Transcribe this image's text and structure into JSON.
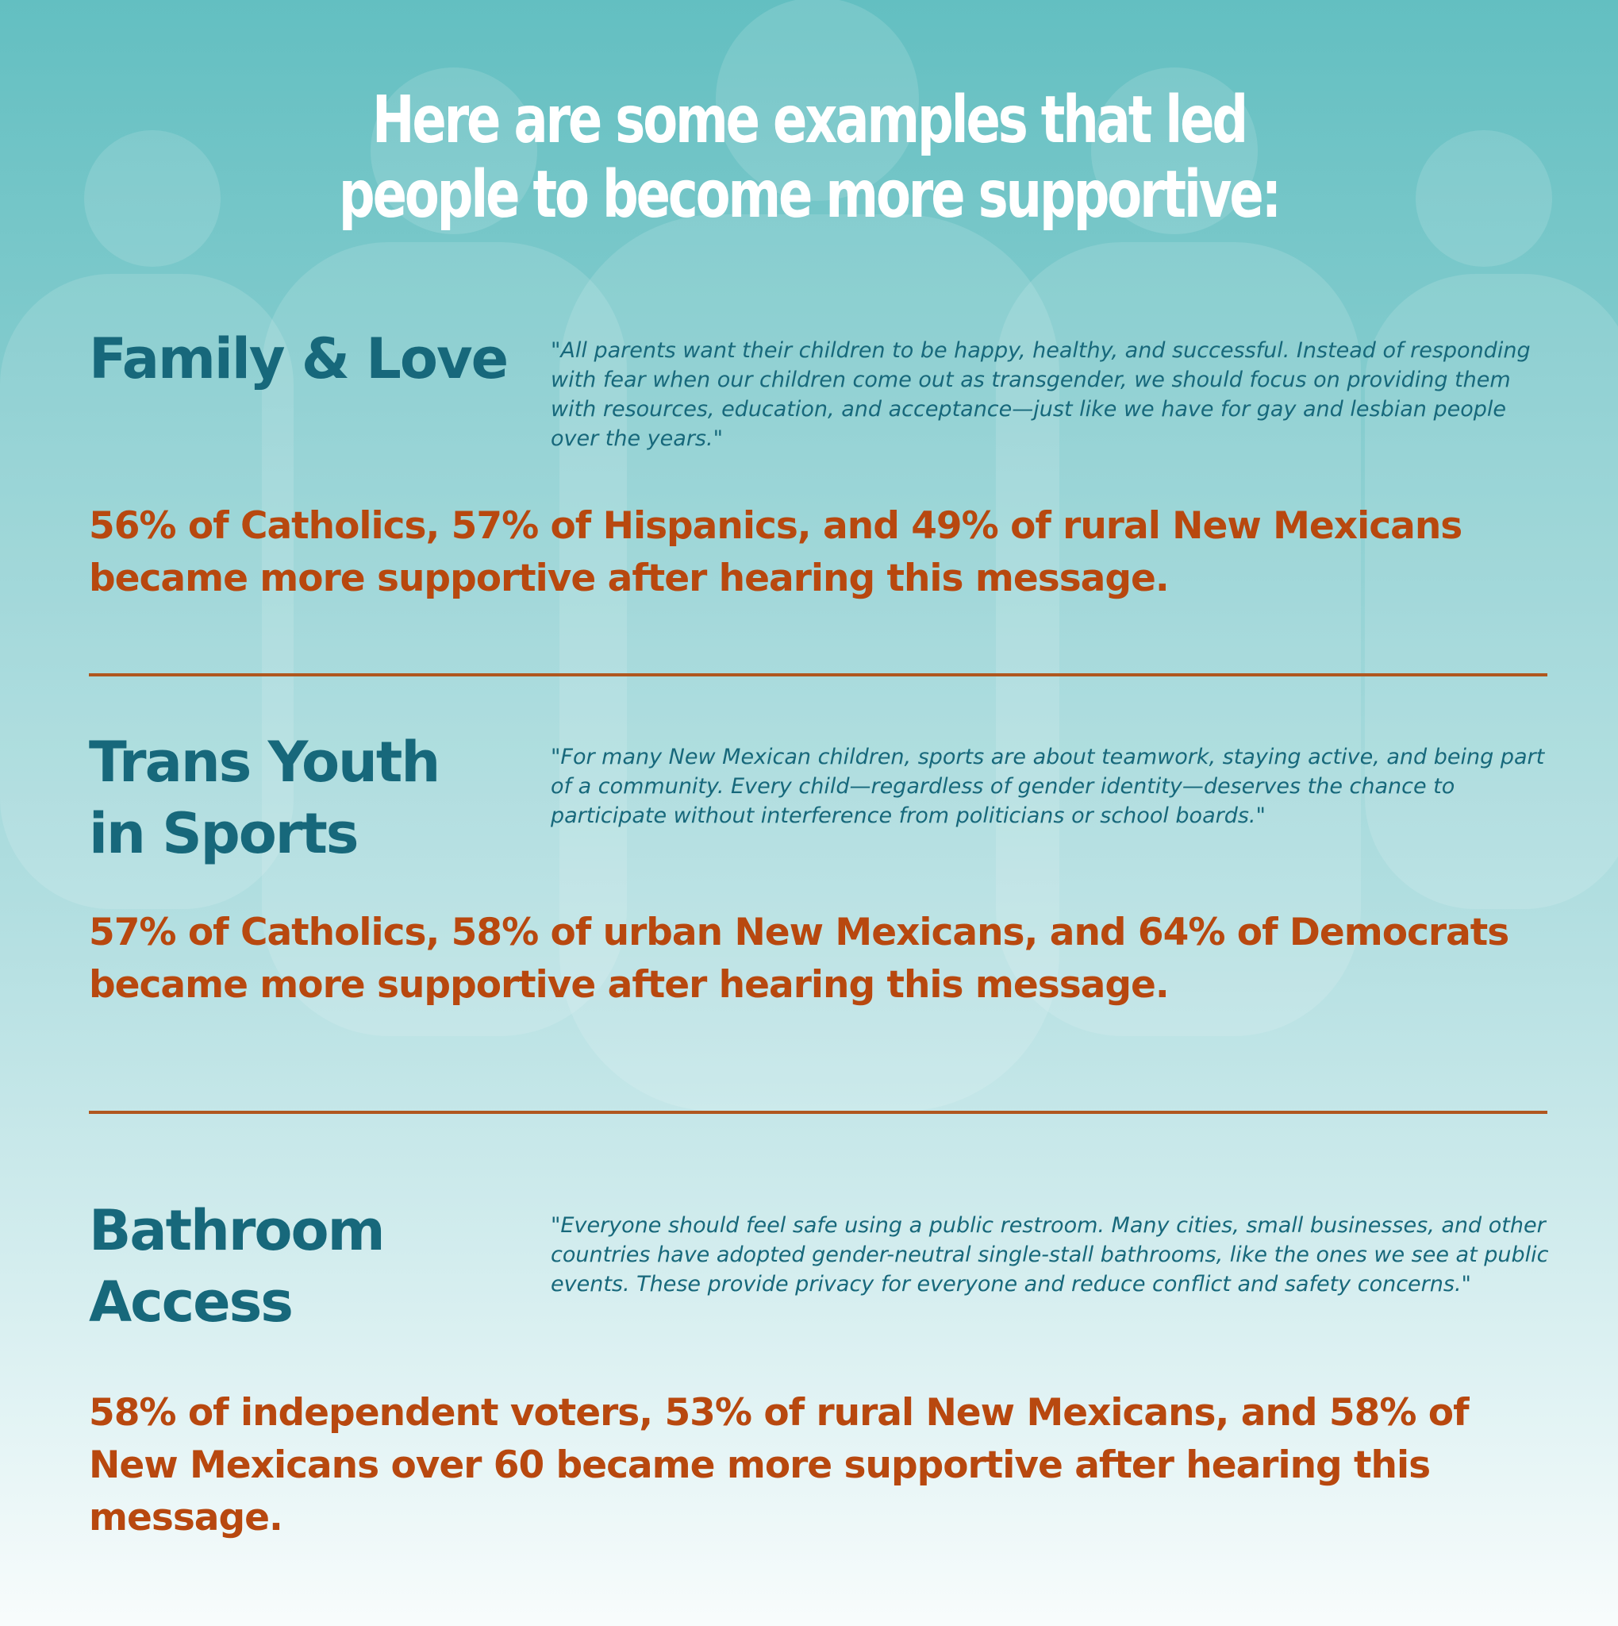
{
  "headline": {
    "line1": "Here are some examples that led",
    "line2": "people to become more supportive:"
  },
  "colors": {
    "background_top": "#63bfc1",
    "background_bottom": "#f8fcfc",
    "figure_silhouette": "#ffffff",
    "topic_heading": "#17687b",
    "quote_text": "#17687b",
    "stat_text": "#b8480f",
    "divider": "#b0571f"
  },
  "background": {
    "figure_icon": "person-silhouette-icon",
    "figure_count": 5
  },
  "sections": [
    {
      "title_lines": [
        "Family & Love"
      ],
      "quote": "\"All parents want their children to be happy, healthy, and successful. Instead of responding with fear when our children come out as transgender, we should focus on providing them with resources, education, and acceptance—just like we have for gay and lesbian people over the years.\"",
      "stat": "56% of Catholics, 57% of Hispanics, and 49% of rural New Mexicans became more supportive after hearing this message."
    },
    {
      "title_lines": [
        "Trans Youth",
        "in Sports"
      ],
      "quote": "\"For many New Mexican children, sports are about teamwork, staying active, and being part of a community. Every child—regardless of gender identity—deserves the chance to participate without interference from politicians or school boards.\"",
      "stat": "57% of Catholics, 58% of urban New Mexicans, and 64% of Democrats became more supportive after hearing this message."
    },
    {
      "title_lines": [
        "Bathroom",
        "Access"
      ],
      "quote": "\"Everyone should feel safe using a public restroom. Many cities, small businesses, and other countries have adopted gender-neutral single-stall bathrooms, like the ones we see at public events. These provide privacy for everyone and reduce conflict and safety concerns.\"",
      "stat": "58% of independent voters, 53% of rural New Mexicans, and 58% of New Mexicans over 60 became more supportive after hearing this message."
    }
  ]
}
